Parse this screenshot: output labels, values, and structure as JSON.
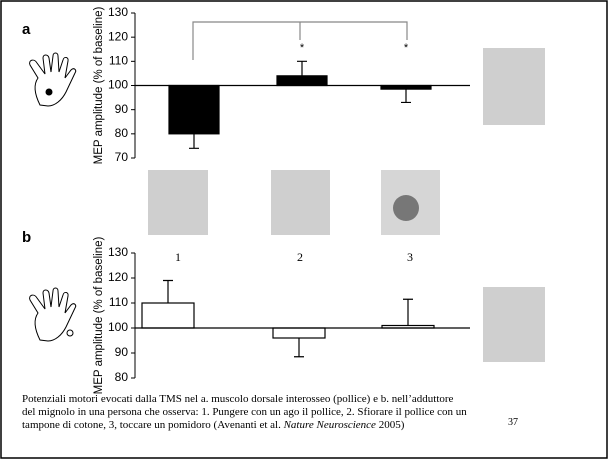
{
  "chart_data": [
    {
      "type": "bar",
      "panel": "a",
      "ylabel": "MEP amplitude (% of baseline)",
      "categories": [
        null,
        null,
        null
      ],
      "values": [
        80,
        104,
        98.5
      ],
      "errors": [
        6,
        6,
        5.5
      ],
      "significance": [
        null,
        "*",
        "*"
      ],
      "color": "#000000",
      "ylim": [
        70,
        130
      ],
      "yticks": [
        70,
        80,
        90,
        100,
        110,
        120,
        130
      ],
      "baseline": 100
    },
    {
      "type": "bar",
      "panel": "b",
      "ylabel": "MEP amplitude (% of baseline)",
      "categories": [
        "1",
        "2",
        "3"
      ],
      "values": [
        110,
        96,
        101
      ],
      "errors": [
        9,
        7.5,
        10.5
      ],
      "color": "#ffffff",
      "ylim": [
        80,
        130
      ],
      "yticks": [
        80,
        90,
        100,
        110,
        120,
        130
      ],
      "baseline": 100
    }
  ],
  "caption": {
    "lines": [
      "Potenziali motori evocati dalla TMS nel  a. muscolo dorsale interosseo (pollice) e b. nell’adduttore",
      "del mignolo in una persona che osserva: 1. Pungere con un ago il pollice, 2. Sfiorare il pollice con un",
      "tampone di cotone, 3, toccare un pomidoro  (Avenanti et al."
    ],
    "journal": "Nature Neuroscience",
    "year": "2005)"
  },
  "page_number": "37"
}
